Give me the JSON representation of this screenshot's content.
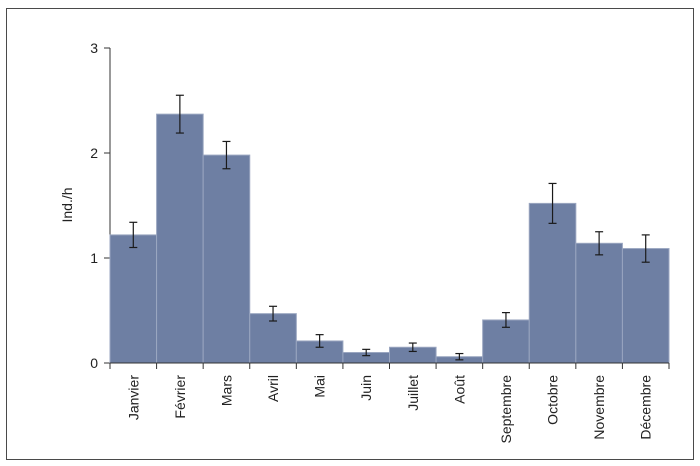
{
  "chart_data": {
    "type": "bar",
    "ylabel": "Ind./h",
    "ylim": [
      0,
      3
    ],
    "yticks": [
      "0",
      "1",
      "2",
      "3"
    ],
    "categories": [
      "Janvier",
      "Février",
      "Mars",
      "Avril",
      "Mai",
      "Juin",
      "Juillet",
      "Août",
      "Septembre",
      "Octobre",
      "Novembre",
      "Décembre"
    ],
    "values": [
      1.22,
      2.37,
      1.98,
      0.47,
      0.21,
      0.1,
      0.15,
      0.06,
      0.41,
      1.52,
      1.14,
      1.09
    ],
    "error": [
      0.12,
      0.18,
      0.13,
      0.07,
      0.06,
      0.03,
      0.04,
      0.03,
      0.07,
      0.19,
      0.11,
      0.13
    ],
    "bar_color": "#6e7fa3",
    "bar_edge_color": "#9aa6c0",
    "grid": false
  }
}
